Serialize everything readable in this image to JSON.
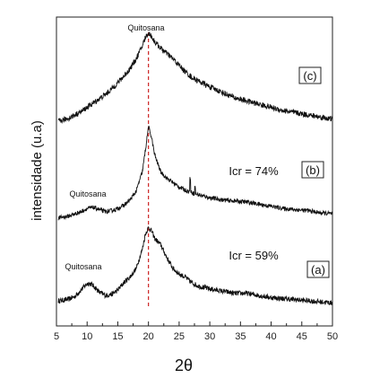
{
  "chart_data": {
    "type": "line",
    "xlabel": "2θ",
    "ylabel": "intensidade (u.a)",
    "xlim": [
      5,
      50
    ],
    "xticks": [
      5,
      10,
      15,
      20,
      25,
      30,
      35,
      40,
      45,
      50
    ],
    "grid": false,
    "legend": "none",
    "reference_line": {
      "x": 20,
      "style": "dashed",
      "color": "#cc2222"
    },
    "series": [
      {
        "label": "(a)",
        "annotation": "Icr = 59%",
        "peak_label": "Quitosana",
        "points": [
          [
            5.3,
            10
          ],
          [
            6,
            10.5
          ],
          [
            7,
            11.5
          ],
          [
            8,
            14
          ],
          [
            9,
            20
          ],
          [
            10,
            26
          ],
          [
            10.5,
            26
          ],
          [
            11,
            24
          ],
          [
            12,
            18
          ],
          [
            13,
            15
          ],
          [
            14,
            16
          ],
          [
            15,
            20
          ],
          [
            16,
            27
          ],
          [
            17,
            32
          ],
          [
            18,
            40
          ],
          [
            19,
            58
          ],
          [
            19.5,
            72
          ],
          [
            20,
            78
          ],
          [
            20.5,
            75
          ],
          [
            21,
            68
          ],
          [
            22,
            62
          ],
          [
            23,
            50
          ],
          [
            24,
            40
          ],
          [
            25,
            35
          ],
          [
            26,
            32
          ],
          [
            27,
            27
          ],
          [
            28,
            24
          ],
          [
            30,
            21
          ],
          [
            32,
            19
          ],
          [
            34,
            17
          ],
          [
            36,
            17
          ],
          [
            38,
            15
          ],
          [
            40,
            13
          ],
          [
            42,
            12
          ],
          [
            44,
            11
          ],
          [
            46,
            10
          ],
          [
            48,
            9
          ],
          [
            50,
            8
          ]
        ],
        "noise": 2.4
      },
      {
        "label": "(b)",
        "annotation": "Icr = 74%",
        "peak_label": "Quitosana",
        "points": [
          [
            5.3,
            5
          ],
          [
            6,
            6
          ],
          [
            7,
            7
          ],
          [
            8,
            9
          ],
          [
            9,
            11
          ],
          [
            10,
            14
          ],
          [
            11,
            15
          ],
          [
            12,
            13
          ],
          [
            13,
            11
          ],
          [
            14,
            12
          ],
          [
            15,
            14
          ],
          [
            16,
            17
          ],
          [
            17,
            22
          ],
          [
            18,
            30
          ],
          [
            19,
            48
          ],
          [
            19.5,
            68
          ],
          [
            20,
            90
          ],
          [
            20.5,
            80
          ],
          [
            21,
            64
          ],
          [
            22,
            48
          ],
          [
            23,
            42
          ],
          [
            24,
            38
          ],
          [
            25,
            34
          ],
          [
            26,
            31
          ],
          [
            27,
            29
          ],
          [
            28,
            27
          ],
          [
            30,
            24
          ],
          [
            32,
            22
          ],
          [
            34,
            21
          ],
          [
            36,
            20
          ],
          [
            38,
            18
          ],
          [
            40,
            16
          ],
          [
            42,
            14
          ],
          [
            44,
            13
          ],
          [
            46,
            12
          ],
          [
            48,
            10
          ],
          [
            50,
            9
          ]
        ],
        "noise": 2.0,
        "spikes": [
          [
            26.8,
            13
          ],
          [
            27.6,
            6
          ]
        ]
      },
      {
        "label": "(c)",
        "peak_label": "Quitosana",
        "points": [
          [
            5.3,
            14
          ],
          [
            6,
            15
          ],
          [
            7,
            17
          ],
          [
            8,
            20
          ],
          [
            9,
            23
          ],
          [
            10,
            27
          ],
          [
            11,
            31
          ],
          [
            12,
            35
          ],
          [
            13,
            39
          ],
          [
            14,
            44
          ],
          [
            15,
            50
          ],
          [
            16,
            56
          ],
          [
            17,
            63
          ],
          [
            18,
            72
          ],
          [
            19,
            84
          ],
          [
            19.5,
            92
          ],
          [
            20,
            96
          ],
          [
            20.5,
            93
          ],
          [
            21,
            88
          ],
          [
            22,
            82
          ],
          [
            23,
            77
          ],
          [
            24,
            72
          ],
          [
            25,
            66
          ],
          [
            26,
            60
          ],
          [
            27,
            55
          ],
          [
            28,
            52
          ],
          [
            30,
            46
          ],
          [
            32,
            41
          ],
          [
            34,
            36
          ],
          [
            36,
            33
          ],
          [
            38,
            30
          ],
          [
            40,
            27
          ],
          [
            42,
            24
          ],
          [
            44,
            22
          ],
          [
            46,
            20
          ],
          [
            48,
            18
          ],
          [
            50,
            16
          ]
        ],
        "noise": 2.6
      }
    ]
  }
}
